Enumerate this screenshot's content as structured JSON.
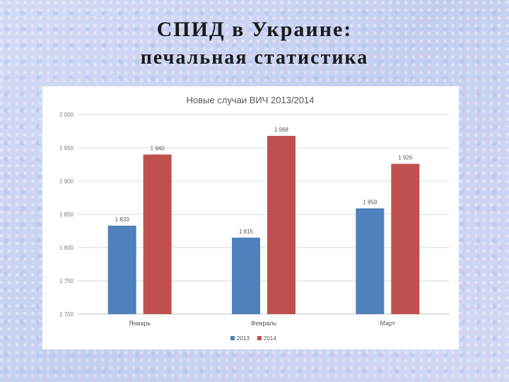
{
  "slide": {
    "title_line1": "СПИД в Украине:",
    "title_line2": "печальная статистика"
  },
  "chart_data": {
    "type": "bar",
    "title": "Новые случаи ВИЧ 2013/2014",
    "categories": [
      "Январь",
      "Февраль",
      "Март"
    ],
    "series": [
      {
        "name": "2013",
        "color": "#4f81bd",
        "values": [
          1833,
          1815,
          1859
        ],
        "labels": [
          "1 833",
          "1 815",
          "1 859"
        ]
      },
      {
        "name": "2014",
        "color": "#c0504d",
        "values": [
          1940,
          1968,
          1926
        ],
        "labels": [
          "1 940",
          "1 968",
          "1 926"
        ]
      }
    ],
    "ylim": [
      1700,
      2000
    ],
    "yticks": [
      1700,
      1750,
      1800,
      1850,
      1900,
      1950,
      2000
    ],
    "ytick_labels": [
      "1 700",
      "1 750",
      "1 800",
      "1 850",
      "1 900",
      "1 950",
      "2 000"
    ],
    "grid": true,
    "legend_position": "bottom",
    "xlabel": "",
    "ylabel": ""
  }
}
